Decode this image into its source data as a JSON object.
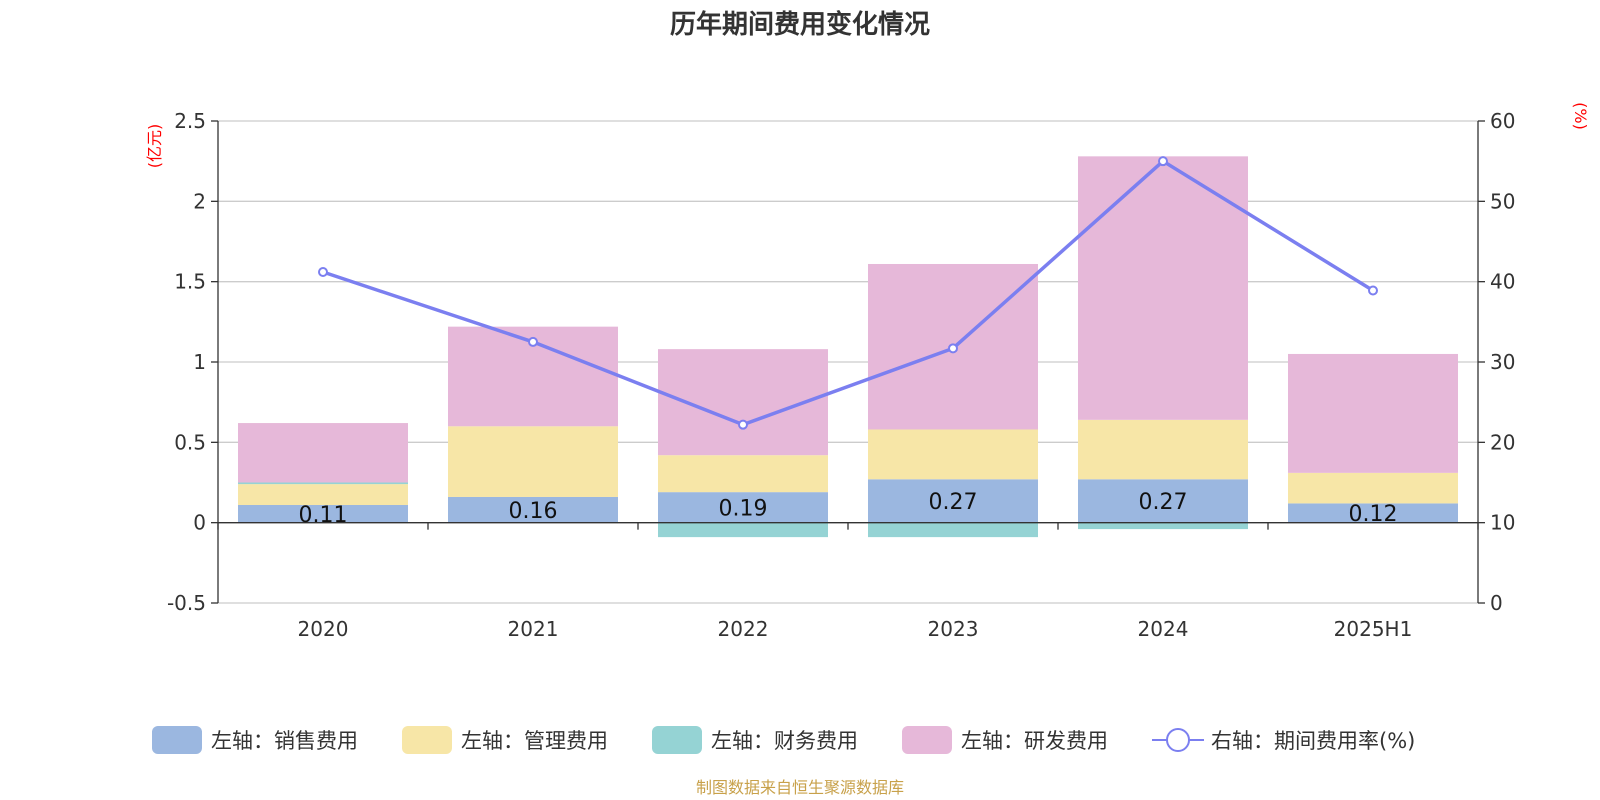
{
  "chart_data": {
    "type": "bar",
    "title": "历年期间费用变化情况",
    "categories": [
      "2020",
      "2021",
      "2022",
      "2023",
      "2024",
      "2025H1"
    ],
    "stacked": true,
    "left_axis": {
      "unit": "(亿元)",
      "ylim": [
        -0.5,
        2.5
      ],
      "ticks": [
        "-0.5",
        "0",
        "0.5",
        "1",
        "1.5",
        "2",
        "2.5"
      ]
    },
    "right_axis": {
      "unit": "(%)",
      "ylim": [
        0,
        60
      ],
      "ticks": [
        "0",
        "10",
        "20",
        "30",
        "40",
        "50",
        "60"
      ]
    },
    "series": [
      {
        "name": "左轴：销售费用",
        "axis": "left",
        "type": "bar",
        "color": "#9bb7e0",
        "values": [
          0.11,
          0.16,
          0.19,
          0.27,
          0.27,
          0.12
        ],
        "labels": [
          "0.11",
          "0.16",
          "0.19",
          "0.27",
          "0.27",
          "0.12"
        ]
      },
      {
        "name": "左轴：管理费用",
        "axis": "left",
        "type": "bar",
        "color": "#f7e6a7",
        "values": [
          0.13,
          0.44,
          0.23,
          0.31,
          0.37,
          0.19
        ]
      },
      {
        "name": "左轴：财务费用",
        "axis": "left",
        "type": "bar",
        "color": "#95d3d4",
        "values": [
          0.01,
          0.0,
          -0.09,
          -0.09,
          -0.04,
          0.0
        ]
      },
      {
        "name": "左轴：研发费用",
        "axis": "left",
        "type": "bar",
        "color": "#e6b8d9",
        "values": [
          0.37,
          0.62,
          0.66,
          1.03,
          1.64,
          0.74
        ]
      },
      {
        "name": "右轴：期间费用率(%)",
        "axis": "right",
        "type": "line",
        "color": "#7b7ff0",
        "values": [
          41.2,
          32.5,
          22.2,
          31.7,
          55.0,
          38.9
        ]
      }
    ],
    "grid": true,
    "legend_position": "bottom"
  },
  "source": "制图数据来自恒生聚源数据库"
}
